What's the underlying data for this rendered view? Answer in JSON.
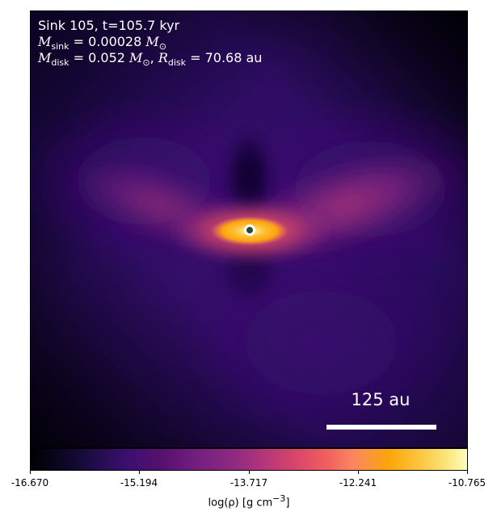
{
  "overlay": {
    "title": "Sink 105, t=105.7 kyr",
    "msink_symbol": "M",
    "msink_sub": "sink",
    "msink_value": "= 0.00028",
    "msink_unit": "M",
    "msink_unit_sub": "⊙",
    "mdisk_symbol": "M",
    "mdisk_sub": "disk",
    "mdisk_value": "= 0.052",
    "mdisk_unit": "M",
    "mdisk_unit_sub": "⊙",
    "sep": ",",
    "rdisk_symbol": "R",
    "rdisk_sub": "disk",
    "rdisk_value": "= 70.68 au"
  },
  "scalebar": {
    "label": "125 au"
  },
  "colorbar": {
    "ticks": [
      "-16.670",
      "-15.194",
      "-13.717",
      "-12.241",
      "-10.765"
    ],
    "label_prefix": "log(ρ) [g cm",
    "label_exp": "−3",
    "label_suffix": "]"
  },
  "colors": {
    "background_dark": "#2a0a55",
    "disk_hot": "#fcfdbf",
    "sink_fill": "#2d4a2a"
  }
}
